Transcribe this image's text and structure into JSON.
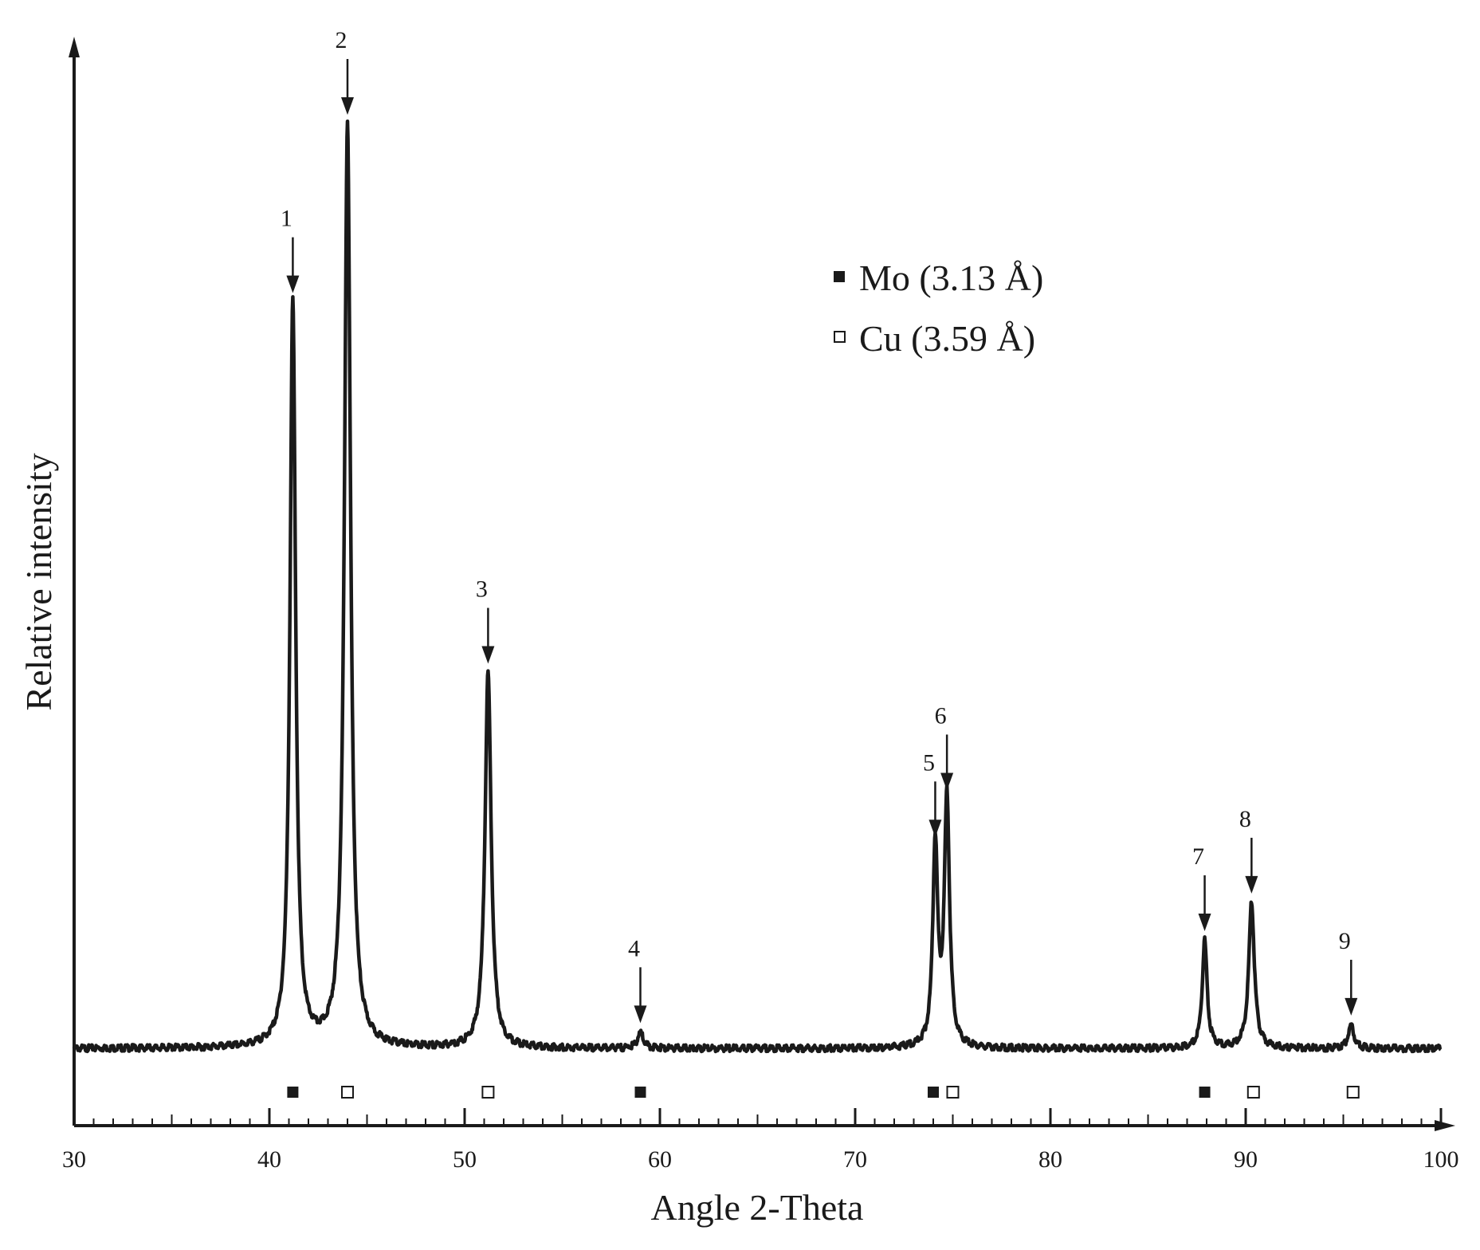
{
  "chart_data": {
    "type": "line",
    "title": "",
    "xlabel": "Angle 2-Theta",
    "ylabel": "Relative intensity",
    "xlim": [
      30,
      100
    ],
    "ylim": [
      0,
      100
    ],
    "x_ticks": [
      "30",
      "40",
      "50",
      "60",
      "70",
      "80",
      "90",
      "100"
    ],
    "grid": false,
    "legend_position": "top-right",
    "series": [
      {
        "marker": "filled-square",
        "label": "Mo (3.13 Å)",
        "color": "#1a1a1a"
      },
      {
        "marker": "open-square",
        "label": "Cu (3.59 Å)",
        "color": "#1a1a1a"
      }
    ],
    "baseline": 1.5,
    "peaks": [
      {
        "label": "1",
        "x": 41.2,
        "y": 81.0,
        "width": 0.35
      },
      {
        "label": "2",
        "x": 44.0,
        "y": 100.0,
        "width": 0.38
      },
      {
        "label": "3",
        "x": 51.2,
        "y": 41.5,
        "width": 0.38
      },
      {
        "label": "4",
        "x": 59.0,
        "y": 3.2,
        "width": 0.35
      },
      {
        "label": "5",
        "x": 74.1,
        "y": 23.0,
        "width": 0.3
      },
      {
        "label": "6",
        "x": 74.7,
        "y": 28.0,
        "width": 0.32
      },
      {
        "label": "7",
        "x": 87.9,
        "y": 13.0,
        "width": 0.3
      },
      {
        "label": "8",
        "x": 90.3,
        "y": 17.0,
        "width": 0.35
      },
      {
        "label": "9",
        "x": 95.4,
        "y": 4.0,
        "width": 0.35
      }
    ],
    "reference_markers": [
      {
        "x": 41.2,
        "phase": "Mo"
      },
      {
        "x": 44.0,
        "phase": "Cu"
      },
      {
        "x": 51.2,
        "phase": "Cu"
      },
      {
        "x": 59.0,
        "phase": "Mo"
      },
      {
        "x": 74.0,
        "phase": "Mo"
      },
      {
        "x": 75.0,
        "phase": "Cu"
      },
      {
        "x": 87.9,
        "phase": "Mo"
      },
      {
        "x": 90.4,
        "phase": "Cu"
      },
      {
        "x": 95.5,
        "phase": "Cu"
      }
    ]
  }
}
